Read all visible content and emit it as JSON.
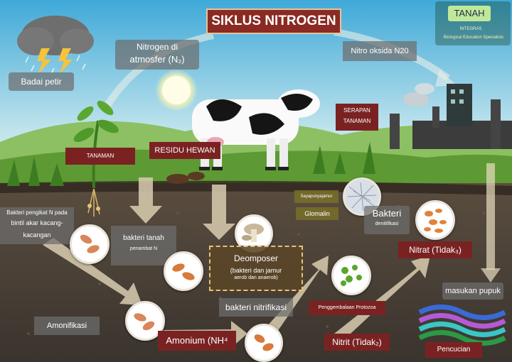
{
  "title": "SIKLUS NITROGEN",
  "logo": {
    "text": "TANAH",
    "subtext": "INTEGRAS",
    "tagline": "Biological Education Specialists"
  },
  "labels": {
    "badai_petir": "Badai petir",
    "nitrogen_atm_line1": "Nitrogen di",
    "nitrogen_atm_line2": "atmosfer (N₂)",
    "nitro_oksida": "Nitro oksida N20",
    "serapan_line1": "SERAPAN",
    "serapan_line2": "TANAMAN",
    "tanaman": "TANAMAN",
    "residu_hewan": "RESIDU HEWAN",
    "sayapunya_jamur": "Sayapunyajamur",
    "glomalin": "Glomalin",
    "bakteri_denitrifikasi_line1": "Bakteri",
    "bakteri_denitrifikasi_line2": "denitifikasi",
    "bakteri_pengikat_line1": "Bakteri pengikat N pada",
    "bakteri_pengikat_line2": "bintil akar kacang-",
    "bakteri_pengikat_line3": "kacangan",
    "bakteri_tanah_line1": "bakteri tanah",
    "bakteri_tanah_line2": "penambat N",
    "decomposer_line1": "Deomposer",
    "decomposer_line2": "(bakteri dan jamur",
    "decomposer_line3": "aerob dan anaerob)",
    "nitrat": "Nitrat (Tidak₃)",
    "masukan_pupuk": "masukan pupuk",
    "amonifikasi": "Amonifikasi",
    "bakteri_nitrifikasi": "bakteri nitrifikasi",
    "penggembalaan": "Penggembalaan Protozoa",
    "amonium": "Amonium (NH⁴",
    "nitrit": "Nitrit (Tidak₂)",
    "pencucian": "Pencucian"
  },
  "colors": {
    "sky_top": "#4fb3da",
    "sky_bottom": "#d8eef0",
    "grass": "#6aa83a",
    "soil": "#4a4238",
    "title_bg": "#8a2a22",
    "label_red": "#7a2222",
    "arrow": "#e8dcc0"
  }
}
